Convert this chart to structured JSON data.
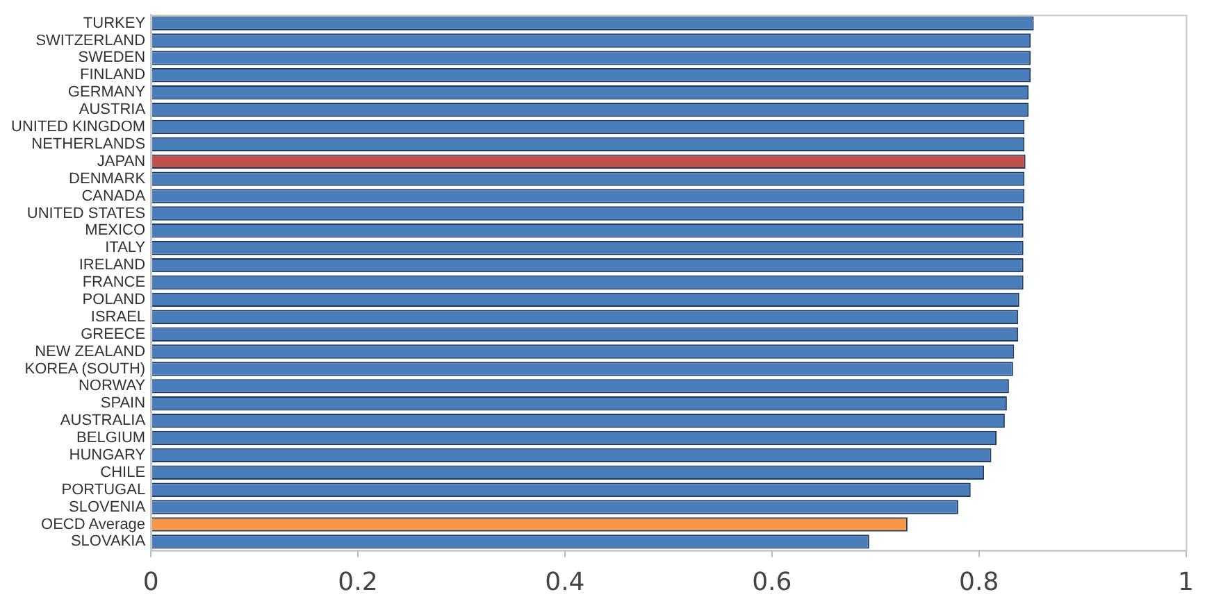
{
  "chart_data": {
    "type": "bar",
    "orientation": "horizontal",
    "categories": [
      "TURKEY",
      "SWITZERLAND",
      "SWEDEN",
      "FINLAND",
      "GERMANY",
      "AUSTRIA",
      "UNITED KINGDOM",
      "NETHERLANDS",
      "JAPAN",
      "DENMARK",
      "CANADA",
      "UNITED STATES",
      "MEXICO",
      "ITALY",
      "IRELAND",
      "FRANCE",
      "POLAND",
      "ISRAEL",
      "GREECE",
      "NEW ZEALAND",
      "KOREA (SOUTH)",
      "NORWAY",
      "SPAIN",
      "AUSTRALIA",
      "BELGIUM",
      "HUNGARY",
      "CHILE",
      "PORTUGAL",
      "SLOVENIA",
      "OECD Average",
      "SLOVAKIA"
    ],
    "values": [
      0.853,
      0.85,
      0.85,
      0.85,
      0.848,
      0.848,
      0.844,
      0.844,
      0.845,
      0.844,
      0.844,
      0.843,
      0.843,
      0.843,
      0.843,
      0.843,
      0.839,
      0.838,
      0.838,
      0.834,
      0.833,
      0.829,
      0.827,
      0.825,
      0.817,
      0.812,
      0.805,
      0.792,
      0.78,
      0.731,
      0.694
    ],
    "colors": [
      "#4a7ebb",
      "#4a7ebb",
      "#4a7ebb",
      "#4a7ebb",
      "#4a7ebb",
      "#4a7ebb",
      "#4a7ebb",
      "#4a7ebb",
      "#c0504d",
      "#4a7ebb",
      "#4a7ebb",
      "#4a7ebb",
      "#4a7ebb",
      "#4a7ebb",
      "#4a7ebb",
      "#4a7ebb",
      "#4a7ebb",
      "#4a7ebb",
      "#4a7ebb",
      "#4a7ebb",
      "#4a7ebb",
      "#4a7ebb",
      "#4a7ebb",
      "#4a7ebb",
      "#4a7ebb",
      "#4a7ebb",
      "#4a7ebb",
      "#4a7ebb",
      "#4a7ebb",
      "#f79646",
      "#4a7ebb"
    ],
    "xlim": [
      0,
      1
    ],
    "xticks": [
      0,
      0.2,
      0.4,
      0.6,
      0.8,
      1
    ],
    "grid": false,
    "legend": false
  }
}
